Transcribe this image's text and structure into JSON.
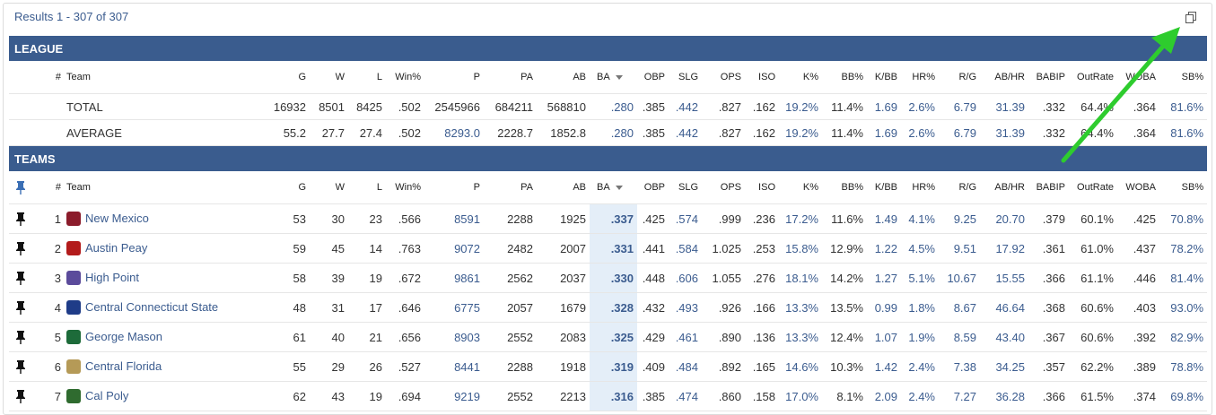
{
  "results_text": "Results 1 - 307 of 307",
  "league": {
    "title": "LEAGUE",
    "columns": [
      "#",
      "Team",
      "G",
      "W",
      "L",
      "Win%",
      "P",
      "PA",
      "AB",
      "BA",
      "OBP",
      "SLG",
      "OPS",
      "ISO",
      "K%",
      "BB%",
      "K/BB",
      "HR%",
      "R/G",
      "AB/HR",
      "BABIP",
      "OutRate",
      "WOBA",
      "SB%"
    ],
    "rows": [
      {
        "label": "TOTAL",
        "values": [
          "16932",
          "8501",
          "8425",
          ".502",
          "2545966",
          "684211",
          "568810",
          ".280",
          ".385",
          ".442",
          ".827",
          ".162",
          "19.2%",
          "11.4%",
          "1.69",
          "2.6%",
          "6.79",
          "31.39",
          ".332",
          "64.4%",
          ".364",
          "81.6%"
        ]
      },
      {
        "label": "AVERAGE",
        "values": [
          "55.2",
          "27.7",
          "27.4",
          ".502",
          "8293.0",
          "2228.7",
          "1852.8",
          ".280",
          ".385",
          ".442",
          ".827",
          ".162",
          "19.2%",
          "11.4%",
          "1.69",
          "2.6%",
          "6.79",
          "31.39",
          ".332",
          "64.4%",
          ".364",
          "81.6%"
        ]
      }
    ]
  },
  "teams": {
    "title": "TEAMS",
    "columns": [
      "#",
      "Team",
      "G",
      "W",
      "L",
      "Win%",
      "P",
      "PA",
      "AB",
      "BA",
      "OBP",
      "SLG",
      "OPS",
      "ISO",
      "K%",
      "BB%",
      "K/BB",
      "HR%",
      "R/G",
      "AB/HR",
      "BABIP",
      "OutRate",
      "WOBA",
      "SB%"
    ],
    "rows": [
      {
        "rank": "1",
        "team": "New Mexico",
        "values": [
          "53",
          "30",
          "23",
          ".566",
          "8591",
          "2288",
          "1925",
          ".337",
          ".425",
          ".574",
          ".999",
          ".236",
          "17.2%",
          "11.6%",
          "1.49",
          "4.1%",
          "9.25",
          "20.70",
          ".379",
          "60.1%",
          ".425",
          "70.8%"
        ]
      },
      {
        "rank": "2",
        "team": "Austin Peay",
        "values": [
          "59",
          "45",
          "14",
          ".763",
          "9072",
          "2482",
          "2007",
          ".331",
          ".441",
          ".584",
          "1.025",
          ".253",
          "15.8%",
          "12.9%",
          "1.22",
          "4.5%",
          "9.51",
          "17.92",
          ".361",
          "61.0%",
          ".437",
          "78.2%"
        ]
      },
      {
        "rank": "3",
        "team": "High Point",
        "values": [
          "58",
          "39",
          "19",
          ".672",
          "9861",
          "2562",
          "2037",
          ".330",
          ".448",
          ".606",
          "1.055",
          ".276",
          "18.1%",
          "14.2%",
          "1.27",
          "5.1%",
          "10.67",
          "15.55",
          ".366",
          "61.1%",
          ".446",
          "81.4%"
        ]
      },
      {
        "rank": "4",
        "team": "Central Connecticut State",
        "values": [
          "48",
          "31",
          "17",
          ".646",
          "6775",
          "2057",
          "1679",
          ".328",
          ".432",
          ".493",
          ".926",
          ".166",
          "13.3%",
          "13.5%",
          "0.99",
          "1.8%",
          "8.67",
          "46.64",
          ".368",
          "60.6%",
          ".403",
          "93.0%"
        ]
      },
      {
        "rank": "5",
        "team": "George Mason",
        "values": [
          "61",
          "40",
          "21",
          ".656",
          "8903",
          "2552",
          "2083",
          ".325",
          ".429",
          ".461",
          ".890",
          ".136",
          "13.3%",
          "12.4%",
          "1.07",
          "1.9%",
          "8.59",
          "43.40",
          ".367",
          "60.6%",
          ".392",
          "82.9%"
        ]
      },
      {
        "rank": "6",
        "team": "Central Florida",
        "values": [
          "55",
          "29",
          "26",
          ".527",
          "8441",
          "2288",
          "1918",
          ".319",
          ".409",
          ".484",
          ".892",
          ".165",
          "14.6%",
          "10.3%",
          "1.42",
          "2.4%",
          "7.38",
          "34.25",
          ".357",
          "62.2%",
          ".389",
          "78.8%"
        ]
      },
      {
        "rank": "7",
        "team": "Cal Poly",
        "values": [
          "62",
          "43",
          "19",
          ".694",
          "9219",
          "2552",
          "2213",
          ".316",
          ".385",
          ".474",
          ".860",
          ".158",
          "17.0%",
          "8.1%",
          "2.09",
          "2.4%",
          "7.27",
          "36.28",
          ".366",
          "61.5%",
          ".374",
          "69.8%"
        ]
      }
    ]
  }
}
